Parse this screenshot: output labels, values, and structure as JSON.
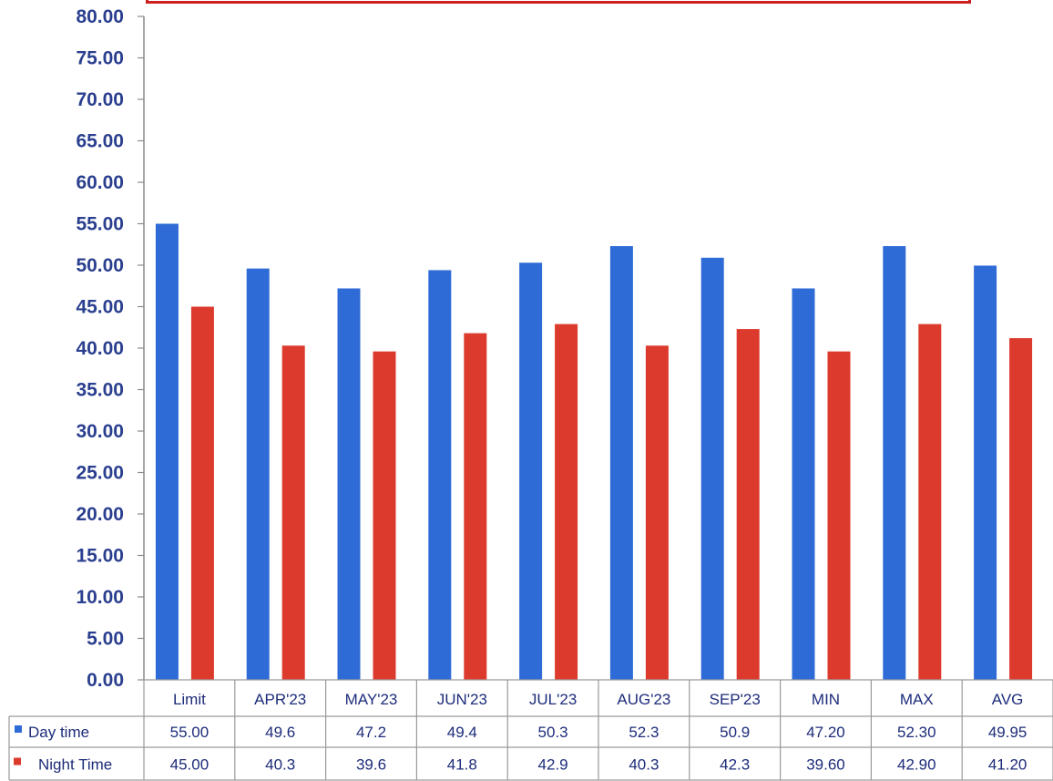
{
  "colors": {
    "day": "#2f6bd6",
    "night": "#dc3a2c",
    "axis_text": "#2a3f8f",
    "table_text": "#1d2c7a",
    "box": "#cc1f1f"
  },
  "chart_data": {
    "type": "bar",
    "title": "",
    "xlabel": "",
    "ylabel": "",
    "ylim": [
      0,
      80
    ],
    "yticks": [
      "0.00",
      "5.00",
      "10.00",
      "15.00",
      "20.00",
      "25.00",
      "30.00",
      "35.00",
      "40.00",
      "45.00",
      "50.00",
      "55.00",
      "60.00",
      "65.00",
      "70.00",
      "75.00",
      "80.00"
    ],
    "categories": [
      "Limit",
      "APR'23",
      "MAY'23",
      "JUN'23",
      "JUL'23",
      "AUG'23",
      "SEP'23",
      "MIN",
      "MAX",
      "AVG"
    ],
    "series": [
      {
        "name": "Day time",
        "values": [
          55.0,
          49.6,
          47.2,
          49.4,
          50.3,
          52.3,
          50.9,
          47.2,
          52.3,
          49.95
        ],
        "labels": [
          "55.00",
          "49.6",
          "47.2",
          "49.4",
          "50.3",
          "52.3",
          "50.9",
          "47.20",
          "52.30",
          "49.95"
        ]
      },
      {
        "name": "Night Time",
        "values": [
          45.0,
          40.3,
          39.6,
          41.8,
          42.9,
          40.3,
          42.3,
          39.6,
          42.9,
          41.2
        ],
        "labels": [
          "45.00",
          "40.3",
          "39.6",
          "41.8",
          "42.9",
          "40.3",
          "42.3",
          "39.60",
          "42.90",
          "41.20"
        ]
      }
    ],
    "legend": "data-table-left",
    "grid": false
  }
}
